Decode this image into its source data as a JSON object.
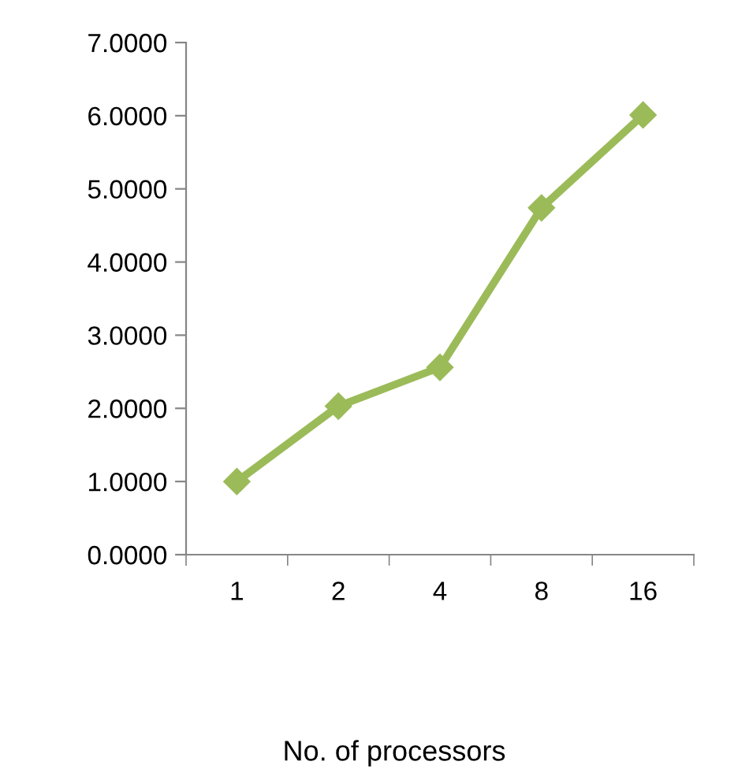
{
  "chart_data": {
    "type": "line",
    "xlabel": "No. of processors",
    "categories": [
      "1",
      "2",
      "4",
      "8",
      "16"
    ],
    "series": [
      {
        "color": "#9bbb59",
        "values": [
          1.0,
          2.03,
          2.56,
          4.74,
          6.01
        ]
      }
    ],
    "ylim": [
      0,
      7
    ],
    "yticks": [
      {
        "value": 0,
        "label": "0.0000"
      },
      {
        "value": 1,
        "label": "1.0000"
      },
      {
        "value": 2,
        "label": "2.0000"
      },
      {
        "value": 3,
        "label": "3.0000"
      },
      {
        "value": 4,
        "label": "4.0000"
      },
      {
        "value": 5,
        "label": "5.0000"
      },
      {
        "value": 6,
        "label": "6.0000"
      },
      {
        "value": 7,
        "label": "7.0000"
      }
    ],
    "marker": "diamond",
    "line_style": "solid",
    "grid": false,
    "legend": false
  }
}
